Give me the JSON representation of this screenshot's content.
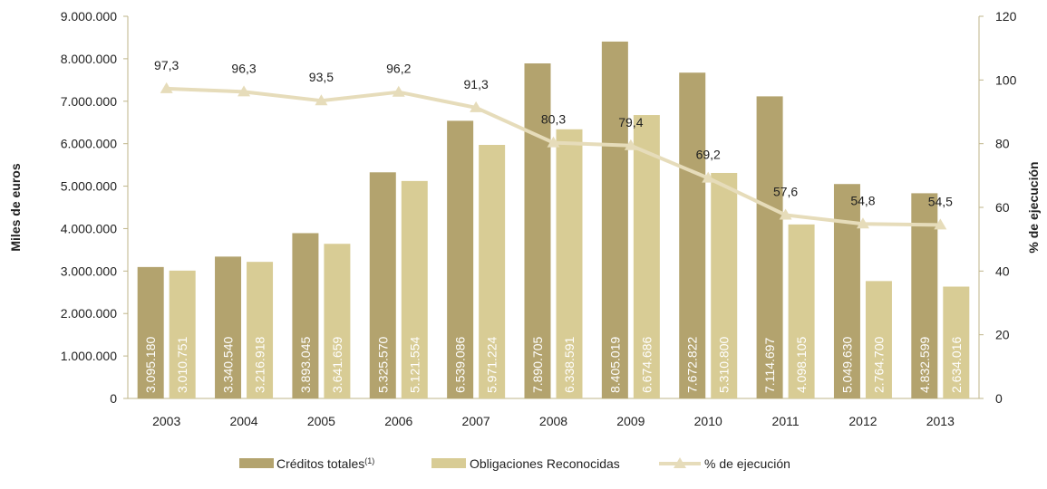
{
  "chart_data": {
    "type": "bar",
    "categories": [
      "2003",
      "2004",
      "2005",
      "2006",
      "2007",
      "2008",
      "2009",
      "2010",
      "2011",
      "2012",
      "2013"
    ],
    "series": [
      {
        "name": "Créditos totales",
        "name_superscript": "(1)",
        "axis": "left",
        "kind": "bar",
        "color": "#B3A36E",
        "values": [
          3095180,
          3340540,
          3893045,
          5325570,
          6539086,
          7890705,
          8405019,
          7672822,
          7114697,
          5049630,
          4832599
        ],
        "labels": [
          "3.095.180",
          "3.340.540",
          "3.893.045",
          "5.325.570",
          "6.539.086",
          "7.890.705",
          "8.405.019",
          "7.672.822",
          "7.114.697",
          "5.049.630",
          "4.832.599"
        ]
      },
      {
        "name": "Obligaciones Reconocidas",
        "axis": "left",
        "kind": "bar",
        "color": "#D8CC95",
        "values": [
          3010751,
          3216918,
          3641659,
          5121554,
          5971224,
          6338591,
          6674686,
          5310800,
          4098105,
          2764700,
          2634016
        ],
        "labels": [
          "3.010.751",
          "3.216.918",
          "3.641.659",
          "5.121.554",
          "5.971.224",
          "6.338.591",
          "6.674.686",
          "5.310.800",
          "4.098.105",
          "2.764.700",
          "2.634.016"
        ]
      },
      {
        "name": "% de ejecución",
        "axis": "right",
        "kind": "line",
        "color": "#E6DCBA",
        "values": [
          97.3,
          96.3,
          93.5,
          96.2,
          91.3,
          80.3,
          79.4,
          69.2,
          57.6,
          54.8,
          54.5
        ],
        "labels": [
          "97,3",
          "96,3",
          "93,5",
          "96,2",
          "91,3",
          "80,3",
          "79,4",
          "69,2",
          "57,6",
          "54,8",
          "54,5"
        ]
      }
    ],
    "ylabel": "Miles de euros",
    "ylabel_right": "% de ejecución",
    "ylim": [
      0,
      9000000
    ],
    "ylim_right": [
      0,
      120
    ],
    "yticks": [
      "0",
      "1.000.000",
      "2.000.000",
      "3.000.000",
      "4.000.000",
      "5.000.000",
      "6.000.000",
      "7.000.000",
      "8.000.000",
      "9.000.000"
    ],
    "yticks_right": [
      "0",
      "20",
      "40",
      "60",
      "80",
      "100",
      "120"
    ],
    "grid": false,
    "legend_position": "bottom",
    "axis_color": "#BFB58A"
  }
}
